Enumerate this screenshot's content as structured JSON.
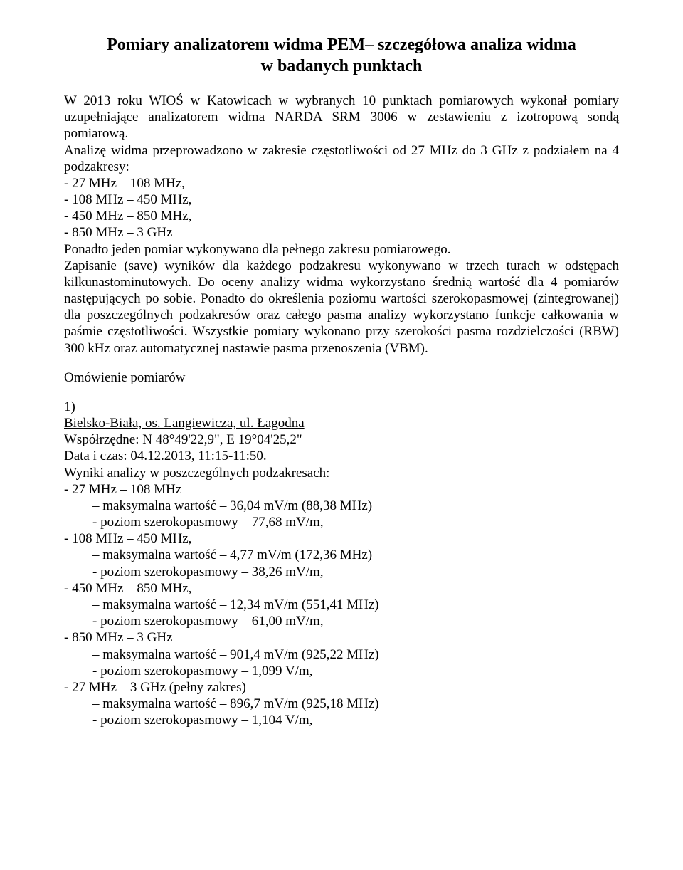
{
  "title_line1": "Pomiary analizatorem widma PEM– szczegółowa analiza widma",
  "title_line2": "w badanych punktach",
  "intro": "W 2013 roku WIOŚ w Katowicach w wybranych 10 punktach pomiarowych wykonał pomiary uzupełniające analizatorem widma NARDA SRM 3006 w zestawieniu z izotropową sondą pomiarową.",
  "method1": "Analizę widma przeprowadzono w zakresie częstotliwości od 27 MHz do 3 GHz z podziałem na 4 podzakresy:",
  "ranges": {
    "r1": "- 27 MHz – 108 MHz,",
    "r2": "- 108 MHz – 450 MHz,",
    "r3": "- 450 MHz – 850 MHz,",
    "r4": "- 850 MHz – 3 GHz"
  },
  "method2": "Ponadto jeden pomiar wykonywano dla pełnego zakresu pomiarowego.",
  "method3": "Zapisanie (save) wyników dla każdego podzakresu wykonywano w trzech turach w odstępach kilkunastominutowych. Do oceny analizy widma wykorzystano średnią wartość dla 4 pomiarów następujących po sobie. Ponadto do określenia poziomu wartości szerokopasmowej (zintegrowanej) dla poszczególnych podzakresów oraz całego pasma analizy wykorzystano funkcje całkowania w paśmie częstotliwości. Wszystkie pomiary wykonano przy szerokości pasma rozdzielczości (RBW) 300 kHz oraz automatycznej nastawie pasma przenoszenia (VBM).",
  "subheading": "Omówienie pomiarów",
  "item1": {
    "num": "1)",
    "loc": "Bielsko-Biała, os. Langiewicza, ul. Łagodna",
    "coords": "Współrzędne: N 48°49'22,9\", E 19°04'25,2\"",
    "datetime": "Data i czas: 04.12.2013, 11:15-11:50.",
    "results_label": "Wyniki analizy w poszczególnych podzakresach:"
  },
  "blocks": [
    {
      "range": "- 27 MHz – 108 MHz",
      "max": "– maksymalna wartość – 36,04 mV/m (88,38 MHz)",
      "level": "- poziom szerokopasmowy – 77,68 mV/m,"
    },
    {
      "range": "- 108 MHz – 450 MHz,",
      "max": "– maksymalna wartość – 4,77 mV/m (172,36 MHz)",
      "level": "- poziom szerokopasmowy – 38,26 mV/m,"
    },
    {
      "range": "- 450 MHz – 850 MHz,",
      "max": "– maksymalna wartość – 12,34 mV/m (551,41 MHz)",
      "level": "- poziom szerokopasmowy – 61,00 mV/m,"
    },
    {
      "range": "- 850 MHz – 3 GHz",
      "max": "– maksymalna wartość – 901,4 mV/m (925,22 MHz)",
      "level": "- poziom szerokopasmowy – 1,099 V/m,"
    },
    {
      "range": "- 27 MHz – 3 GHz (pełny zakres)",
      "max": "– maksymalna wartość – 896,7 mV/m (925,18 MHz)",
      "level": "- poziom szerokopasmowy – 1,104 V/m,"
    }
  ]
}
